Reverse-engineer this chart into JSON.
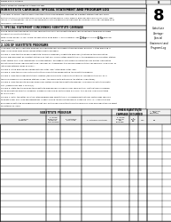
{
  "form_header": "FORM SA1-2, PAGE 8",
  "form_subheader": "LEGAL NAME OF OWNER OF CABLE SYSTEM",
  "right_number": "8",
  "right_labels": [
    "Substitute",
    "Carriage:",
    "Special",
    "Statement and",
    "Program Log"
  ],
  "main_title": "SUBSTITUTE CARRIAGE: SPECIAL STATEMENT AND PROGRAM LOG",
  "section1_title": "1. SPECIAL STATEMENT CONCERNING SUBSTITUTE CARRIAGE",
  "section2_title": "2. LOG OF SUBSTITUTE PROGRAMS",
  "intro_text": [
    "In General: In space I identify every nonnetwork television program, broadcast by a distant station, that your cable",
    "system carried on a substitute basis during the accounting period, under specific program-and-service (FCC rules, regu-",
    "lations, or authorizations. For a further explanation of the programming that must be included in this log, see page 50 of",
    "the general instructions."
  ],
  "s1_text": [
    "During the accounting period, did your cable system carry, on a substitute basis, any nonnetwork television program",
    "broadcast by a distant station?"
  ],
  "note_text": [
    "Note: If your answer is \"No,\" leave the rest of this page blank. If your answer is \"Yes,\" you must complete the program",
    "log in space 2."
  ],
  "s2_text": [
    "In General: List each substitute program on a separate line. Use abbreviations wherever possible. If titles meaning is",
    "clear, if you need more space, please attach additional pages.",
    "Column 1: Give the title of each substitute television program (\"substitute program\") that during this accounting",
    "period, was broadcast by a distant station and that your cable system substituted for the programming of another station",
    "under certain FCC rules, regulations, or authorizations. See page xi of the general instructions for further information",
    "on net one particular requirement to be \"checked\" or \"transferred\" to a specific program titled. for example: \"Low-Long\" or",
    "\"other Nonnetwork: News or Music.\"",
    "Column 2: If the program was broadcast live, enter \"Yes\"; Otherwise, enter \"Yes\".",
    "Column 3: Give the call sign of the distant television station broadcasting the substitute program.",
    "Column 4: Give the broadcast station's location (the community in which the station is licensed by the FCC, or in",
    "the case of Mexican or Canadian stations, if any, the community with which the station is identified).",
    "Column 5: Give the month and day when your system carried the substitute program. Use numerals with the month",
    "first. (Example for May 7, give 5/7).",
    "Column 6: State the times when the substitute program was carried by your cable system. List the times according",
    "to the nearest five minutes. Example: a program carrying by system from 6:01 p.m. to 6:28 p.m. should be stated",
    "as \"6:00-6:25.\"",
    "Column 7: Enter the letter \"B\" if the listed program was substituted for programming that your system was required",
    "to delete under FCC rules and regulations in effect during the accounting period. Enter the letter \"P\" if the listed pro-",
    "gram was substituted for programming that your system was permitted to delete under FCC rules and regulations in effect",
    "on October 19, 1976."
  ],
  "num_table_rows": 14,
  "table_col_widths": [
    48,
    16,
    24,
    32,
    20,
    10,
    10,
    18
  ],
  "bg_color": "#ffffff",
  "light_gray": "#f0f0f0",
  "mid_gray": "#d8d8d8",
  "dark_gray": "#c8c8c8"
}
